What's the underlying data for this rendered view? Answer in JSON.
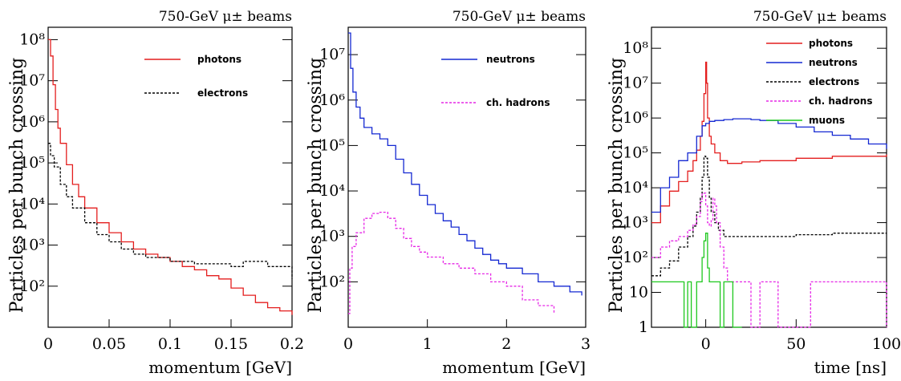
{
  "colors": {
    "photons": "#e41e1e",
    "neutrons": "#1428d2",
    "electrons": "#000000",
    "ch_hadrons": "#e628e6",
    "muons": "#1ec81e"
  },
  "chart_data": [
    {
      "type": "line",
      "title": "750-GeV μ± beams",
      "xlabel": "momentum [GeV]",
      "ylabel": "Particles per bunch crossing",
      "xlim": [
        0,
        0.2
      ],
      "ylim": [
        10,
        200000000
      ],
      "yscale": "log",
      "grid": false,
      "legend_position": "top-right",
      "x_ticks": [
        {
          "v": 0,
          "label": "0"
        },
        {
          "v": 0.05,
          "label": "0.05"
        },
        {
          "v": 0.1,
          "label": "0.1"
        },
        {
          "v": 0.15,
          "label": "0.15"
        },
        {
          "v": 0.2,
          "label": "0.2"
        }
      ],
      "y_ticks": [
        {
          "v": 100,
          "label": "10²"
        },
        {
          "v": 1000,
          "label": "10³"
        },
        {
          "v": 10000,
          "label": "10⁴"
        },
        {
          "v": 100000,
          "label": "10⁵"
        },
        {
          "v": 1000000,
          "label": "10⁶"
        },
        {
          "v": 10000000,
          "label": "10⁷"
        },
        {
          "v": 100000000,
          "label": "10⁸"
        }
      ],
      "series": [
        {
          "name": "photons",
          "color_key": "photons",
          "dash": "",
          "x": [
            0,
            0.002,
            0.004,
            0.006,
            0.008,
            0.01,
            0.015,
            0.02,
            0.025,
            0.03,
            0.04,
            0.05,
            0.06,
            0.07,
            0.08,
            0.09,
            0.1,
            0.11,
            0.12,
            0.13,
            0.14,
            0.15,
            0.16,
            0.17,
            0.18,
            0.19,
            0.2
          ],
          "y": [
            100000000,
            40000000,
            8000000,
            2000000,
            700000,
            300000,
            90000,
            30000,
            15000,
            8000,
            3500,
            2000,
            1200,
            800,
            600,
            500,
            400,
            300,
            250,
            180,
            150,
            90,
            60,
            40,
            30,
            25,
            20
          ]
        },
        {
          "name": "electrons",
          "color_key": "electrons",
          "dash": "3,2",
          "x": [
            0,
            0.002,
            0.005,
            0.01,
            0.015,
            0.02,
            0.03,
            0.04,
            0.05,
            0.06,
            0.07,
            0.08,
            0.1,
            0.12,
            0.14,
            0.15,
            0.16,
            0.18,
            0.2
          ],
          "y": [
            300000,
            150000,
            80000,
            30000,
            15000,
            8000,
            3500,
            1800,
            1200,
            800,
            600,
            500,
            400,
            350,
            350,
            300,
            400,
            300,
            150
          ]
        }
      ]
    },
    {
      "type": "line",
      "title": "750-GeV μ± beams",
      "xlabel": "momentum [GeV]",
      "ylabel": "Particles per bunch crossing",
      "xlim": [
        0,
        3
      ],
      "ylim": [
        10,
        40000000
      ],
      "yscale": "log",
      "grid": false,
      "legend_position": "top-right",
      "x_ticks": [
        {
          "v": 0,
          "label": "0"
        },
        {
          "v": 1,
          "label": "1"
        },
        {
          "v": 2,
          "label": "2"
        },
        {
          "v": 3,
          "label": "3"
        }
      ],
      "y_ticks": [
        {
          "v": 100,
          "label": "10²"
        },
        {
          "v": 1000,
          "label": "10³"
        },
        {
          "v": 10000,
          "label": "10⁴"
        },
        {
          "v": 100000,
          "label": "10⁵"
        },
        {
          "v": 1000000,
          "label": "10⁶"
        },
        {
          "v": 10000000,
          "label": "10⁷"
        }
      ],
      "series": [
        {
          "name": "neutrons",
          "color_key": "neutrons",
          "dash": "",
          "x": [
            0,
            0.03,
            0.06,
            0.1,
            0.15,
            0.2,
            0.3,
            0.4,
            0.5,
            0.6,
            0.7,
            0.8,
            0.9,
            1.0,
            1.1,
            1.2,
            1.3,
            1.4,
            1.5,
            1.6,
            1.7,
            1.8,
            1.9,
            2.0,
            2.2,
            2.4,
            2.6,
            2.8,
            2.95
          ],
          "y": [
            30000000,
            5000000,
            1500000,
            700000,
            400000,
            250000,
            180000,
            140000,
            100000,
            50000,
            25000,
            14000,
            8000,
            5000,
            3200,
            2200,
            1600,
            1100,
            800,
            550,
            400,
            300,
            250,
            200,
            150,
            100,
            80,
            60,
            50
          ]
        },
        {
          "name": "ch. hadrons",
          "color_key": "ch_hadrons",
          "dash": "3,2",
          "x": [
            0,
            0.02,
            0.05,
            0.1,
            0.2,
            0.3,
            0.4,
            0.5,
            0.6,
            0.7,
            0.8,
            0.9,
            1.0,
            1.2,
            1.4,
            1.6,
            1.8,
            2.0,
            2.2,
            2.4,
            2.6
          ],
          "y": [
            20,
            200,
            600,
            1200,
            2500,
            3200,
            3400,
            2500,
            1500,
            900,
            600,
            450,
            350,
            250,
            200,
            150,
            100,
            80,
            40,
            30,
            20
          ]
        }
      ]
    },
    {
      "type": "line",
      "title": "750-GeV μ± beams",
      "xlabel": "time [ns]",
      "ylabel": "Particles per bunch crossing",
      "xlim": [
        -30,
        100
      ],
      "ylim": [
        1,
        400000000
      ],
      "yscale": "log",
      "grid": false,
      "legend_position": "top-right",
      "x_ticks": [
        {
          "v": 0,
          "label": "0"
        },
        {
          "v": 50,
          "label": "50"
        },
        {
          "v": 100,
          "label": "100"
        }
      ],
      "y_ticks": [
        {
          "v": 1,
          "label": "1"
        },
        {
          "v": 10,
          "label": "10"
        },
        {
          "v": 100,
          "label": "10²"
        },
        {
          "v": 1000,
          "label": "10³"
        },
        {
          "v": 10000,
          "label": "10⁴"
        },
        {
          "v": 100000,
          "label": "10⁵"
        },
        {
          "v": 1000000,
          "label": "10⁶"
        },
        {
          "v": 10000000,
          "label": "10⁷"
        },
        {
          "v": 100000000,
          "label": "10⁸"
        }
      ],
      "series": [
        {
          "name": "photons",
          "color_key": "photons",
          "dash": "",
          "x": [
            -30,
            -25,
            -20,
            -15,
            -10,
            -7,
            -5,
            -3,
            -2,
            -1,
            0,
            0.5,
            1,
            2,
            3,
            5,
            8,
            12,
            20,
            30,
            50,
            70,
            100
          ],
          "y": [
            1000,
            3000,
            8000,
            15000,
            30000,
            60000,
            120000,
            300000,
            800000,
            5000000,
            40000000,
            10000000,
            1000000,
            300000,
            180000,
            100000,
            60000,
            50000,
            55000,
            60000,
            70000,
            80000,
            90000
          ]
        },
        {
          "name": "neutrons",
          "color_key": "neutrons",
          "dash": "",
          "x": [
            -30,
            -25,
            -20,
            -15,
            -10,
            -5,
            -2,
            0,
            2,
            5,
            10,
            15,
            20,
            25,
            30,
            40,
            50,
            60,
            70,
            80,
            90,
            100
          ],
          "y": [
            2000,
            10000,
            20000,
            60000,
            100000,
            300000,
            600000,
            700000,
            800000,
            850000,
            900000,
            950000,
            950000,
            900000,
            850000,
            700000,
            550000,
            400000,
            320000,
            250000,
            180000,
            130000
          ]
        },
        {
          "name": "electrons",
          "color_key": "electrons",
          "dash": "3,2",
          "x": [
            -30,
            -25,
            -20,
            -15,
            -10,
            -7,
            -5,
            -3,
            -2,
            -1,
            0,
            1,
            2,
            3,
            5,
            7,
            10,
            20,
            30,
            40,
            50,
            60,
            70,
            80,
            90,
            100
          ],
          "y": [
            30,
            50,
            80,
            200,
            400,
            800,
            2000,
            5000,
            20000,
            80000,
            70000,
            20000,
            5000,
            2000,
            1000,
            600,
            400,
            400,
            400,
            400,
            450,
            450,
            500,
            500,
            500,
            500
          ]
        },
        {
          "name": "ch. hadrons",
          "color_key": "ch_hadrons",
          "dash": "3,2",
          "x": [
            -30,
            -25,
            -20,
            -15,
            -10,
            -7,
            -5,
            -3,
            -2,
            0,
            1,
            2,
            3,
            4,
            5,
            6,
            8,
            10,
            12,
            15,
            20,
            25,
            30,
            40,
            55,
            58,
            100
          ],
          "y": [
            100,
            200,
            300,
            400,
            600,
            900,
            1500,
            4000,
            7000,
            3000,
            1000,
            800,
            1200,
            5000,
            3000,
            1000,
            200,
            50,
            20,
            20,
            20,
            1,
            20,
            1,
            1,
            20,
            1
          ]
        },
        {
          "name": "muons",
          "color_key": "muons",
          "dash": "",
          "x": [
            -30,
            -25,
            -20,
            -15,
            -12,
            -10,
            -8,
            -5,
            -3,
            -2,
            -1,
            0,
            1,
            2,
            3,
            5,
            8,
            10,
            12,
            15,
            20
          ],
          "y": [
            20,
            20,
            20,
            20,
            1,
            20,
            1,
            20,
            20,
            100,
            300,
            500,
            50,
            20,
            20,
            20,
            1,
            20,
            20,
            1,
            1
          ]
        }
      ]
    }
  ]
}
